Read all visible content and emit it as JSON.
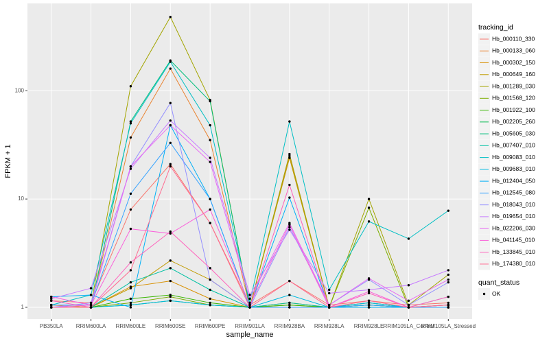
{
  "chart_data": {
    "type": "line",
    "x_label": "sample_name",
    "y_label": "FPKM + 1",
    "log_scale": true,
    "grid": true,
    "categories": [
      "PB350LA",
      "RRIM600LA",
      "RRIM600LE",
      "RRIM600SE",
      "RRIM600PE",
      "RRIM901LA",
      "RRIM928BA",
      "RRIM928LA",
      "RRIM928LE",
      "RRIM105LA_Control",
      "RRIM105LA_Stressed"
    ],
    "ylim": [
      0.78,
      640
    ],
    "yticks": [
      1,
      10,
      100
    ],
    "legend_title": "tracking_id",
    "point_legend_title": "quant_status",
    "point_legend_label": "OK",
    "point_color": "#000000",
    "series": [
      {
        "name": "Hb_000110_330",
        "color": "#F8766D",
        "values": [
          1.15,
          1.1,
          8,
          21,
          6,
          1.05,
          1.75,
          1.05,
          1.15,
          1.05,
          1.1
        ]
      },
      {
        "name": "Hb_000133_060",
        "color": "#EA8331",
        "values": [
          1.05,
          1.0,
          37,
          160,
          35,
          1.0,
          25,
          1.0,
          1.1,
          1.0,
          1.05
        ]
      },
      {
        "name": "Hb_000302_150",
        "color": "#D89000",
        "values": [
          1.0,
          1.0,
          1.55,
          1.75,
          1.2,
          1.0,
          1.1,
          1.0,
          1.05,
          1.0,
          1.0
        ]
      },
      {
        "name": "Hb_000649_160",
        "color": "#C09B00",
        "values": [
          1.0,
          1.0,
          1.5,
          2.7,
          1.8,
          1.0,
          24,
          1.0,
          1.0,
          1.0,
          1.0
        ]
      },
      {
        "name": "Hb_001289_030",
        "color": "#A3A500",
        "values": [
          1.0,
          1.05,
          110,
          480,
          82,
          1.0,
          26,
          1.0,
          10,
          1.05,
          2.0
        ]
      },
      {
        "name": "Hb_001568_120",
        "color": "#7CAE00",
        "values": [
          1.0,
          1.0,
          1.1,
          1.25,
          1.05,
          1.0,
          1.05,
          1.0,
          8.3,
          1.0,
          1.25
        ]
      },
      {
        "name": "Hb_001922_100",
        "color": "#39B600",
        "values": [
          1.0,
          1.0,
          1.2,
          1.3,
          1.1,
          1.0,
          1.05,
          1.0,
          1.05,
          1.0,
          1.0
        ]
      },
      {
        "name": "Hb_002205_260",
        "color": "#00BB4E",
        "values": [
          1.0,
          1.0,
          1.05,
          1.15,
          1.05,
          1.0,
          1.0,
          1.0,
          1.0,
          1.0,
          1.0
        ]
      },
      {
        "name": "Hb_005605_030",
        "color": "#00BF7D",
        "values": [
          1.0,
          1.0,
          52,
          190,
          80,
          1.0,
          1.0,
          1.0,
          1.1,
          1.0,
          1.05
        ]
      },
      {
        "name": "Hb_007407_010",
        "color": "#00C1A3",
        "values": [
          1.0,
          1.0,
          1.7,
          2.3,
          1.45,
          1.0,
          1.1,
          1.0,
          1.05,
          1.0,
          1.0
        ]
      },
      {
        "name": "Hb_009083_010",
        "color": "#00BFC4",
        "values": [
          1.05,
          1.3,
          50,
          185,
          48,
          1.1,
          52,
          1.45,
          6.2,
          4.3,
          7.8
        ]
      },
      {
        "name": "Hb_009683_010",
        "color": "#00BAE0",
        "values": [
          1.0,
          1.0,
          1.05,
          1.15,
          1.05,
          1.0,
          1.3,
          1.0,
          1.1,
          1.0,
          1.0
        ]
      },
      {
        "name": "Hb_012404_050",
        "color": "#00B0F6",
        "values": [
          1.25,
          1.3,
          1.0,
          48,
          10,
          1.0,
          10.3,
          1.0,
          1.0,
          1.0,
          1.0
        ]
      },
      {
        "name": "Hb_012545_080",
        "color": "#35A2FF",
        "values": [
          1.05,
          1.05,
          11.2,
          33,
          10,
          1.0,
          1.0,
          1.0,
          1.05,
          1.0,
          1.0
        ]
      },
      {
        "name": "Hb_018043_010",
        "color": "#9590FF",
        "values": [
          1.0,
          1.1,
          20,
          77,
          1.8,
          1.0,
          5.5,
          1.05,
          1.8,
          1.05,
          1.7
        ]
      },
      {
        "name": "Hb_019654_010",
        "color": "#C77CFF",
        "values": [
          1.2,
          1.5,
          19,
          53,
          24,
          1.3,
          5.2,
          1.35,
          1.45,
          1.6,
          2.2
        ]
      },
      {
        "name": "Hb_022206_030",
        "color": "#E76BF3",
        "values": [
          1.0,
          1.05,
          20,
          48,
          22,
          1.2,
          6,
          1.05,
          1.85,
          1.15,
          1.8
        ]
      },
      {
        "name": "Hb_041145_010",
        "color": "#FA62DB",
        "values": [
          1.25,
          1.05,
          5.3,
          4.8,
          8,
          1.05,
          5.8,
          1.0,
          1.4,
          1.0,
          1.25
        ]
      },
      {
        "name": "Hb_133845_010",
        "color": "#FF62BC",
        "values": [
          1.15,
          1.0,
          2.6,
          5,
          2.3,
          1.0,
          13.5,
          1.0,
          1.35,
          1.0,
          1.05
        ]
      },
      {
        "name": "Hb_174380_010",
        "color": "#FF6C91",
        "values": [
          1.0,
          1.0,
          2.2,
          20,
          6,
          1.0,
          1.75,
          1.0,
          1.15,
          1.0,
          1.05
        ]
      }
    ]
  }
}
